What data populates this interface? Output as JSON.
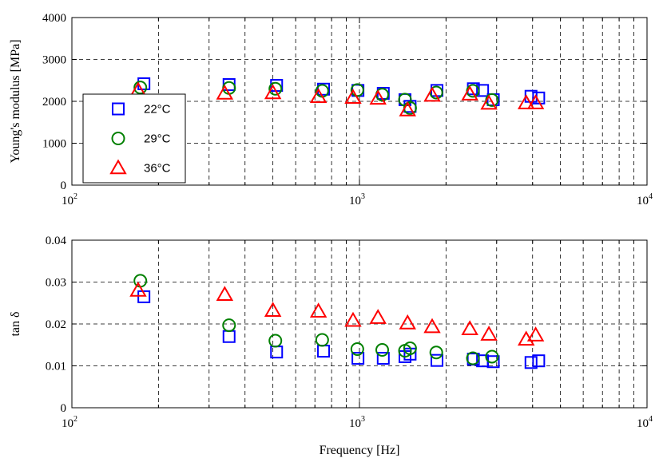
{
  "chart_data": [
    {
      "type": "scatter",
      "xscale": "log",
      "xlim": [
        100,
        10000
      ],
      "ylim": [
        0,
        4000
      ],
      "xticks": [
        {
          "base": "10",
          "exp": "2"
        },
        {
          "base": "10",
          "exp": "3"
        },
        {
          "base": "10",
          "exp": "4"
        }
      ],
      "yticks": [
        "0",
        "1000",
        "2000",
        "3000",
        "4000"
      ],
      "ylabel": "Young's modulus [MPa]",
      "xlabel": "",
      "grid": true,
      "legend": {
        "placement": "left",
        "entries": [
          {
            "label": "22°C",
            "marker": "square",
            "color": "#0000ff"
          },
          {
            "label": "29°C",
            "marker": "circle",
            "color": "#008000"
          },
          {
            "label": "36°C",
            "marker": "triangle",
            "color": "#ff0000"
          }
        ]
      },
      "series": [
        {
          "name": "22°C",
          "marker": "square",
          "color": "#0000ff",
          "x": [
            178,
            352,
            515,
            750,
            988,
            1210,
            1440,
            1500,
            1860,
            2490,
            2680,
            2920,
            3950,
            4200
          ],
          "y": [
            2420,
            2400,
            2380,
            2290,
            2260,
            2190,
            2040,
            1880,
            2260,
            2300,
            2260,
            2040,
            2120,
            2080
          ]
        },
        {
          "name": "29°C",
          "marker": "circle",
          "color": "#008000",
          "x": [
            173,
            352,
            510,
            742,
            983,
            1200,
            1440,
            1500,
            1850,
            2480,
            2890
          ],
          "y": [
            2330,
            2320,
            2300,
            2250,
            2270,
            2160,
            2040,
            1840,
            2210,
            2250,
            2030
          ]
        },
        {
          "name": "36°C",
          "marker": "triangle",
          "color": "#ff0000",
          "x": [
            170,
            340,
            500,
            720,
            950,
            1160,
            1470,
            1790,
            2420,
            2820,
            3800,
            4100
          ],
          "y": [
            2260,
            2190,
            2200,
            2110,
            2090,
            2070,
            1790,
            2140,
            2170,
            1950,
            1960,
            1960
          ]
        }
      ]
    },
    {
      "type": "scatter",
      "xscale": "log",
      "xlim": [
        100,
        10000
      ],
      "ylim": [
        0,
        0.04
      ],
      "xticks": [
        {
          "base": "10",
          "exp": "2"
        },
        {
          "base": "10",
          "exp": "3"
        },
        {
          "base": "10",
          "exp": "4"
        }
      ],
      "yticks": [
        "0",
        "0.01",
        "0.02",
        "0.03",
        "0.04"
      ],
      "ylabel": "tan δ",
      "xlabel": "Frequency [Hz]",
      "grid": true,
      "series": [
        {
          "name": "22°C",
          "marker": "square",
          "color": "#0000ff",
          "x": [
            178,
            352,
            515,
            750,
            988,
            1210,
            1440,
            1500,
            1860,
            2490,
            2680,
            2920,
            3950,
            4200
          ],
          "y": [
            0.0265,
            0.017,
            0.0133,
            0.0135,
            0.0118,
            0.0118,
            0.0122,
            0.0128,
            0.0113,
            0.0116,
            0.0112,
            0.011,
            0.0108,
            0.0112
          ]
        },
        {
          "name": "29°C",
          "marker": "circle",
          "color": "#008000",
          "x": [
            173,
            352,
            510,
            742,
            983,
            1200,
            1440,
            1500,
            1850,
            2480,
            2890
          ],
          "y": [
            0.0303,
            0.0197,
            0.016,
            0.0162,
            0.014,
            0.0138,
            0.0136,
            0.0142,
            0.0132,
            0.0118,
            0.0122
          ]
        },
        {
          "name": "36°C",
          "marker": "triangle",
          "color": "#ff0000",
          "x": [
            170,
            340,
            500,
            720,
            950,
            1160,
            1470,
            1790,
            2420,
            2820,
            3800,
            4100
          ],
          "y": [
            0.028,
            0.027,
            0.0232,
            0.023,
            0.0208,
            0.0215,
            0.0202,
            0.0193,
            0.0188,
            0.0175,
            0.0163,
            0.0173
          ]
        }
      ]
    }
  ]
}
